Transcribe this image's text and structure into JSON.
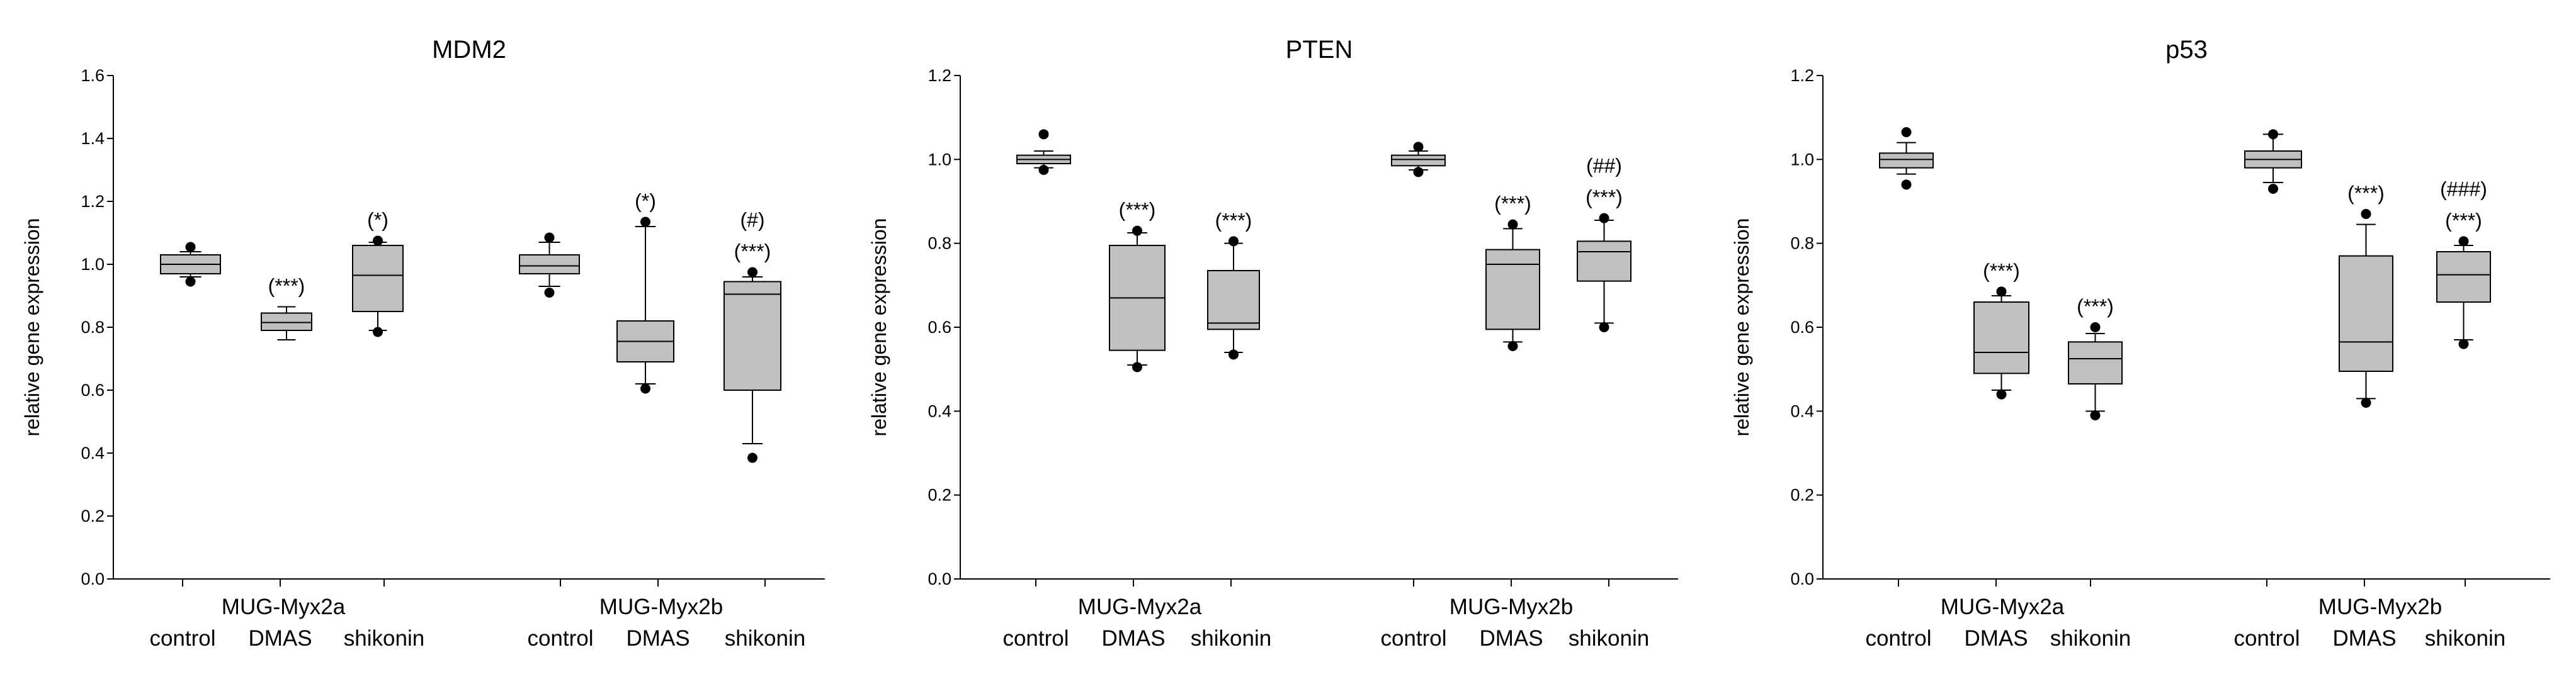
{
  "chart_data": [
    {
      "type": "box",
      "title": "MDM2",
      "ylabel": "relative gene expression",
      "ylim": [
        0,
        1.6
      ],
      "yticks": [
        "0.0",
        "0.2",
        "0.4",
        "0.6",
        "0.8",
        "1.0",
        "1.2",
        "1.4",
        "1.6"
      ],
      "groups": [
        "MUG-Myx2a",
        "MUG-Myx2b"
      ],
      "categories": [
        "control",
        "DMAS",
        "shikonin"
      ],
      "boxes": [
        {
          "group": 0,
          "category": "control",
          "whisker_low": 0.96,
          "q1": 0.97,
          "median": 1.0,
          "q3": 1.03,
          "whisker_high": 1.04,
          "outliers": [
            0.945,
            1.055
          ],
          "annotations": []
        },
        {
          "group": 0,
          "category": "DMAS",
          "whisker_low": 0.76,
          "q1": 0.79,
          "median": 0.815,
          "q3": 0.845,
          "whisker_high": 0.865,
          "outliers": [],
          "annotations": [
            "(***)"
          ]
        },
        {
          "group": 0,
          "category": "shikonin",
          "whisker_low": 0.79,
          "q1": 0.85,
          "median": 0.965,
          "q3": 1.06,
          "whisker_high": 1.07,
          "outliers": [
            0.785,
            1.075
          ],
          "annotations": [
            "(*)"
          ]
        },
        {
          "group": 1,
          "category": "control",
          "whisker_low": 0.93,
          "q1": 0.97,
          "median": 0.995,
          "q3": 1.03,
          "whisker_high": 1.07,
          "outliers": [
            0.91,
            1.085
          ],
          "annotations": []
        },
        {
          "group": 1,
          "category": "DMAS",
          "whisker_low": 0.62,
          "q1": 0.69,
          "median": 0.755,
          "q3": 0.82,
          "whisker_high": 1.12,
          "outliers": [
            0.605,
            1.135
          ],
          "annotations": [
            "(*)"
          ]
        },
        {
          "group": 1,
          "category": "shikonin",
          "whisker_low": 0.43,
          "q1": 0.6,
          "median": 0.905,
          "q3": 0.945,
          "whisker_high": 0.96,
          "outliers": [
            0.385,
            0.975
          ],
          "annotations": [
            "(***)",
            "(#)"
          ]
        }
      ]
    },
    {
      "type": "box",
      "title": "PTEN",
      "ylabel": "relative gene expression",
      "ylim": [
        0,
        1.2
      ],
      "yticks": [
        "0.0",
        "0.2",
        "0.4",
        "0.6",
        "0.8",
        "1.0",
        "1.2"
      ],
      "groups": [
        "MUG-Myx2a",
        "MUG-Myx2b"
      ],
      "categories": [
        "control",
        "DMAS",
        "shikonin"
      ],
      "boxes": [
        {
          "group": 0,
          "category": "control",
          "whisker_low": 0.98,
          "q1": 0.99,
          "median": 1.0,
          "q3": 1.01,
          "whisker_high": 1.02,
          "outliers": [
            0.975,
            1.06
          ],
          "annotations": []
        },
        {
          "group": 0,
          "category": "DMAS",
          "whisker_low": 0.51,
          "q1": 0.545,
          "median": 0.67,
          "q3": 0.795,
          "whisker_high": 0.825,
          "outliers": [
            0.505,
            0.83
          ],
          "annotations": [
            "(***)"
          ]
        },
        {
          "group": 0,
          "category": "shikonin",
          "whisker_low": 0.54,
          "q1": 0.595,
          "median": 0.61,
          "q3": 0.735,
          "whisker_high": 0.8,
          "outliers": [
            0.535,
            0.805
          ],
          "annotations": [
            "(***)"
          ]
        },
        {
          "group": 1,
          "category": "control",
          "whisker_low": 0.975,
          "q1": 0.985,
          "median": 1.0,
          "q3": 1.01,
          "whisker_high": 1.02,
          "outliers": [
            0.97,
            1.03
          ],
          "annotations": []
        },
        {
          "group": 1,
          "category": "DMAS",
          "whisker_low": 0.565,
          "q1": 0.595,
          "median": 0.75,
          "q3": 0.785,
          "whisker_high": 0.835,
          "outliers": [
            0.555,
            0.845
          ],
          "annotations": [
            "(***)"
          ]
        },
        {
          "group": 1,
          "category": "shikonin",
          "whisker_low": 0.61,
          "q1": 0.71,
          "median": 0.78,
          "q3": 0.805,
          "whisker_high": 0.855,
          "outliers": [
            0.6,
            0.86
          ],
          "annotations": [
            "(***)",
            "(##)"
          ]
        }
      ]
    },
    {
      "type": "box",
      "title": "p53",
      "ylabel": "relative gene expression",
      "ylim": [
        0,
        1.2
      ],
      "yticks": [
        "0.0",
        "0.2",
        "0.4",
        "0.6",
        "0.8",
        "1.0",
        "1.2"
      ],
      "groups": [
        "MUG-Myx2a",
        "MUG-Myx2b"
      ],
      "categories": [
        "control",
        "DMAS",
        "shikonin"
      ],
      "boxes": [
        {
          "group": 0,
          "category": "control",
          "whisker_low": 0.965,
          "q1": 0.98,
          "median": 1.0,
          "q3": 1.015,
          "whisker_high": 1.04,
          "outliers": [
            0.94,
            1.065
          ],
          "annotations": []
        },
        {
          "group": 0,
          "category": "DMAS",
          "whisker_low": 0.45,
          "q1": 0.49,
          "median": 0.54,
          "q3": 0.66,
          "whisker_high": 0.675,
          "outliers": [
            0.44,
            0.685
          ],
          "annotations": [
            "(***)"
          ]
        },
        {
          "group": 0,
          "category": "shikonin",
          "whisker_low": 0.4,
          "q1": 0.465,
          "median": 0.525,
          "q3": 0.565,
          "whisker_high": 0.585,
          "outliers": [
            0.39,
            0.6
          ],
          "annotations": [
            "(***)"
          ]
        },
        {
          "group": 1,
          "category": "control",
          "whisker_low": 0.945,
          "q1": 0.98,
          "median": 1.0,
          "q3": 1.02,
          "whisker_high": 1.06,
          "outliers": [
            0.93,
            1.06
          ],
          "annotations": []
        },
        {
          "group": 1,
          "category": "DMAS",
          "whisker_low": 0.43,
          "q1": 0.495,
          "median": 0.565,
          "q3": 0.77,
          "whisker_high": 0.845,
          "outliers": [
            0.42,
            0.87
          ],
          "annotations": [
            "(***)"
          ]
        },
        {
          "group": 1,
          "category": "shikonin",
          "whisker_low": 0.57,
          "q1": 0.66,
          "median": 0.725,
          "q3": 0.78,
          "whisker_high": 0.795,
          "outliers": [
            0.56,
            0.805
          ],
          "annotations": [
            "(***)",
            "(###)"
          ]
        }
      ]
    }
  ]
}
